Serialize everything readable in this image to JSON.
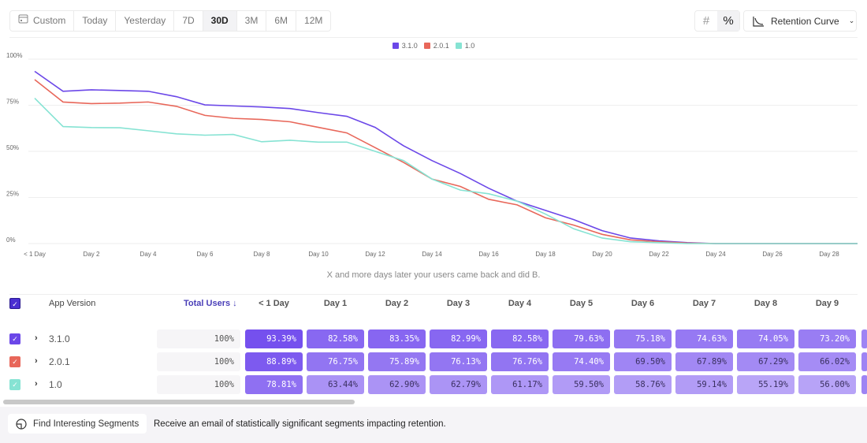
{
  "toolbar": {
    "date_ranges": [
      {
        "label": "Custom",
        "icon": "calendar-icon"
      },
      {
        "label": "Today"
      },
      {
        "label": "Yesterday"
      },
      {
        "label": "7D"
      },
      {
        "label": "30D",
        "active": true
      },
      {
        "label": "3M"
      },
      {
        "label": "6M"
      },
      {
        "label": "12M"
      }
    ],
    "number_mode_icon": "hash-icon",
    "percent_mode_icon": "percent-icon",
    "chart_type": "Retention Curve"
  },
  "chart_data": {
    "type": "line",
    "x": [
      "< 1 Day",
      "Day 1",
      "Day 2",
      "Day 3",
      "Day 4",
      "Day 5",
      "Day 6",
      "Day 7",
      "Day 8",
      "Day 9",
      "Day 10",
      "Day 11",
      "Day 12",
      "Day 13",
      "Day 14",
      "Day 15",
      "Day 16",
      "Day 17",
      "Day 18",
      "Day 19",
      "Day 20",
      "Day 21",
      "Day 22",
      "Day 23",
      "Day 24",
      "Day 25",
      "Day 26",
      "Day 27",
      "Day 28",
      "Day 29"
    ],
    "x_tick_labels": [
      "< 1 Day",
      "Day 2",
      "Day 4",
      "Day 6",
      "Day 8",
      "Day 10",
      "Day 12",
      "Day 14",
      "Day 16",
      "Day 18",
      "Day 20",
      "Day 22",
      "Day 24",
      "Day 26",
      "Day 28"
    ],
    "y_tick_labels": [
      "0%",
      "25%",
      "50%",
      "75%",
      "100%"
    ],
    "ylim": [
      0,
      100
    ],
    "grid": true,
    "legend": "top-center",
    "xlabel": "X and more days later your users came back and did B.",
    "series": [
      {
        "name": "3.1.0",
        "color": "#6b47e8",
        "values": [
          93.39,
          82.58,
          83.35,
          82.99,
          82.58,
          79.63,
          75.18,
          74.63,
          74.05,
          73.2,
          71,
          69,
          63,
          53,
          45,
          38,
          30,
          23,
          18,
          13,
          7,
          3,
          1.5,
          0.5,
          0,
          0,
          0,
          0,
          0,
          0
        ]
      },
      {
        "name": "2.0.1",
        "color": "#e8675a",
        "values": [
          88.89,
          76.75,
          75.89,
          76.13,
          76.76,
          74.4,
          69.5,
          67.89,
          67.29,
          66.02,
          63,
          60,
          52,
          44,
          35,
          31,
          24,
          21,
          14,
          10,
          5,
          2,
          1,
          0.3,
          0,
          0,
          0,
          0,
          0,
          0
        ]
      },
      {
        "name": "1.0",
        "color": "#86e3d3",
        "values": [
          78.81,
          63.44,
          62.9,
          62.79,
          61.17,
          59.5,
          58.76,
          59.14,
          55.19,
          56.0,
          55,
          55,
          50,
          45,
          35,
          29,
          27,
          23,
          16,
          8,
          3,
          1,
          0.5,
          0,
          0,
          0,
          0,
          0,
          0,
          0
        ]
      }
    ]
  },
  "table": {
    "headers": {
      "segment": "App Version",
      "total": "Total Users ↓",
      "days": [
        "< 1 Day",
        "Day 1",
        "Day 2",
        "Day 3",
        "Day 4",
        "Day 5",
        "Day 6",
        "Day 7",
        "Day 8",
        "Day 9"
      ]
    },
    "rows": [
      {
        "name": "3.1.0",
        "color": "#6b47e8",
        "total": "100%",
        "cells": [
          "93.39%",
          "82.58%",
          "83.35%",
          "82.99%",
          "82.58%",
          "79.63%",
          "75.18%",
          "74.63%",
          "74.05%",
          "73.20%"
        ]
      },
      {
        "name": "2.0.1",
        "color": "#e8675a",
        "total": "100%",
        "cells": [
          "88.89%",
          "76.75%",
          "75.89%",
          "76.13%",
          "76.76%",
          "74.40%",
          "69.50%",
          "67.89%",
          "67.29%",
          "66.02%"
        ]
      },
      {
        "name": "1.0",
        "color": "#86e3d3",
        "total": "100%",
        "cells": [
          "78.81%",
          "63.44%",
          "62.90%",
          "62.79%",
          "61.17%",
          "59.50%",
          "58.76%",
          "59.14%",
          "55.19%",
          "56.00%"
        ]
      }
    ]
  },
  "footer": {
    "button": "Find Interesting Segments",
    "text": "Receive an email of statistically significant segments impacting retention."
  }
}
